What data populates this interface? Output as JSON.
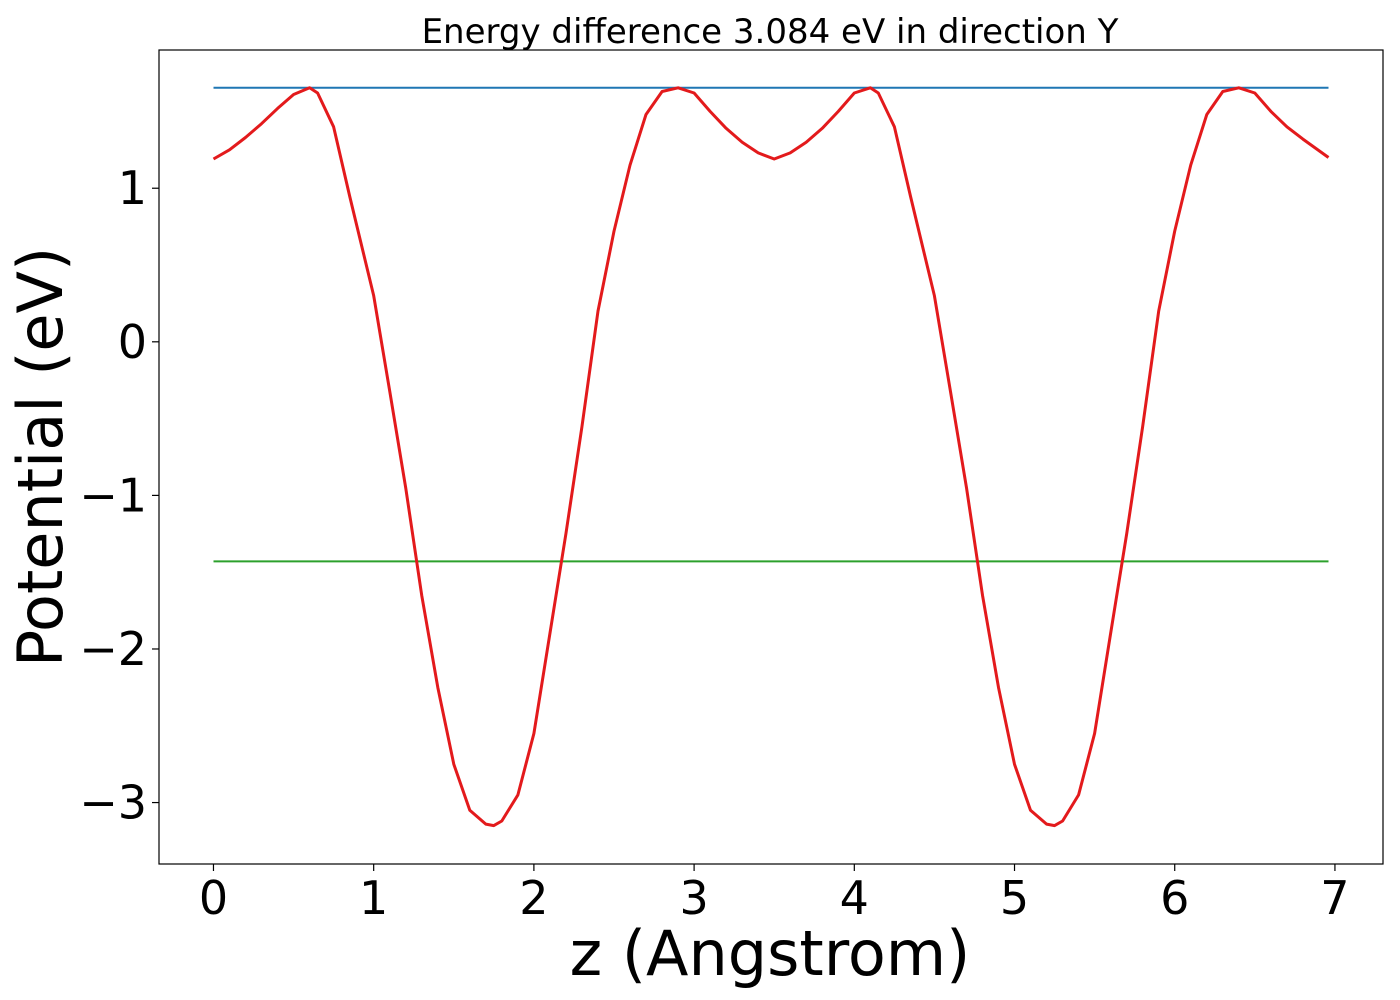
{
  "chart_data": {
    "type": "line",
    "title": "Energy difference 3.084 eV in direction Y",
    "xlabel": "z (Angstrom)",
    "ylabel": "Potential (eV)",
    "xlim": [
      -0.34,
      7.3
    ],
    "ylim": [
      -3.4,
      1.9
    ],
    "x_ticks": [
      0,
      1,
      2,
      3,
      4,
      5,
      6,
      7
    ],
    "x_tick_labels": [
      "0",
      "1",
      "2",
      "3",
      "4",
      "5",
      "6",
      "7"
    ],
    "y_ticks": [
      1,
      0,
      -1,
      -2,
      -3
    ],
    "y_tick_labels": [
      "1",
      "0",
      "−1",
      "−2",
      "−3"
    ],
    "grid": false,
    "legend": "none",
    "series": [
      {
        "color": "#1f77b4",
        "x": [
          0,
          6.96
        ],
        "y": [
          1.654,
          1.654
        ]
      },
      {
        "color": "#2ca02c",
        "x": [
          0,
          6.96
        ],
        "y": [
          -1.43,
          -1.43
        ]
      },
      {
        "color": "#e31a1c",
        "x": [
          0,
          0.1,
          0.2,
          0.3,
          0.4,
          0.5,
          0.6,
          0.65,
          0.75,
          0.85,
          1.0,
          1.1,
          1.2,
          1.3,
          1.4,
          1.5,
          1.6,
          1.7,
          1.75,
          1.8,
          1.9,
          2.0,
          2.1,
          2.2,
          2.3,
          2.4,
          2.5,
          2.6,
          2.7,
          2.8,
          2.9,
          3.0,
          3.1,
          3.2,
          3.3,
          3.4,
          3.5,
          3.6,
          3.7,
          3.8,
          3.9,
          4.0,
          4.1,
          4.15,
          4.25,
          4.35,
          4.5,
          4.6,
          4.7,
          4.8,
          4.9,
          5.0,
          5.1,
          5.2,
          5.25,
          5.3,
          5.4,
          5.5,
          5.6,
          5.7,
          5.8,
          5.9,
          6.0,
          6.1,
          6.2,
          6.3,
          6.4,
          6.5,
          6.6,
          6.7,
          6.8,
          6.96
        ],
        "y": [
          1.19,
          1.25,
          1.33,
          1.42,
          1.52,
          1.61,
          1.654,
          1.62,
          1.4,
          0.95,
          0.3,
          -0.32,
          -0.95,
          -1.65,
          -2.25,
          -2.75,
          -3.05,
          -3.14,
          -3.15,
          -3.12,
          -2.95,
          -2.55,
          -1.9,
          -1.25,
          -0.55,
          0.2,
          0.72,
          1.15,
          1.48,
          1.63,
          1.654,
          1.62,
          1.5,
          1.39,
          1.3,
          1.23,
          1.19,
          1.23,
          1.3,
          1.39,
          1.5,
          1.62,
          1.654,
          1.62,
          1.4,
          0.95,
          0.3,
          -0.32,
          -0.95,
          -1.65,
          -2.25,
          -2.75,
          -3.05,
          -3.14,
          -3.15,
          -3.12,
          -2.95,
          -2.55,
          -1.9,
          -1.25,
          -0.55,
          0.2,
          0.72,
          1.15,
          1.48,
          1.63,
          1.654,
          1.62,
          1.5,
          1.4,
          1.32,
          1.2
        ]
      }
    ]
  }
}
